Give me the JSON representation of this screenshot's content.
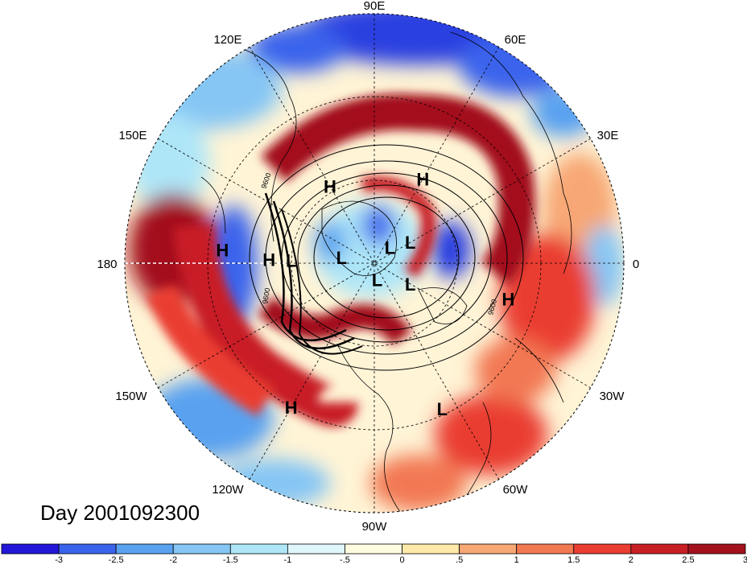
{
  "title": "Day 2001092300",
  "longitude_labels": [
    "90E",
    "60E",
    "30E",
    "0",
    "30W",
    "60W",
    "90W",
    "120W",
    "150W",
    "180",
    "150E",
    "120E"
  ],
  "pressure_centers": [
    {
      "type": "H",
      "lon": 120,
      "lat": 58
    },
    {
      "type": "H",
      "lon": 60,
      "lat": 55
    },
    {
      "type": "H",
      "lon": -15,
      "lat": 40
    },
    {
      "type": "H",
      "lon": -120,
      "lat": 30
    },
    {
      "type": "H",
      "lon": 175,
      "lat": 35
    },
    {
      "type": "H",
      "lon": 178,
      "lat": 52
    },
    {
      "type": "L",
      "lon": 178,
      "lat": 60
    },
    {
      "type": "L",
      "lon": 170,
      "lat": 78
    },
    {
      "type": "L",
      "lon": 45,
      "lat": 82
    },
    {
      "type": "L",
      "lon": 30,
      "lat": 75
    },
    {
      "type": "L",
      "lon": -80,
      "lat": 84
    },
    {
      "type": "L",
      "lon": -30,
      "lat": 75
    },
    {
      "type": "L",
      "lon": -65,
      "lat": 32
    }
  ],
  "contour_labels": [
    "9600",
    "9600",
    "9600"
  ],
  "colorbar": {
    "colors": [
      "#2217d8",
      "#3b64ec",
      "#5aa2f0",
      "#86c6f4",
      "#aee6f8",
      "#dff6fb",
      "#fffbe0",
      "#ffe9a8",
      "#f7a774",
      "#f27852",
      "#ea3d32",
      "#c81f25",
      "#a3111d"
    ],
    "ticks": [
      "-3",
      "-2.5",
      "-2",
      "-1.5",
      "-1",
      "-.5",
      "0",
      ".5",
      "1",
      "1.5",
      "2",
      "2.5",
      "3"
    ]
  },
  "icons": {
    "high_marker": "H-glyph",
    "low_marker": "L-glyph"
  }
}
